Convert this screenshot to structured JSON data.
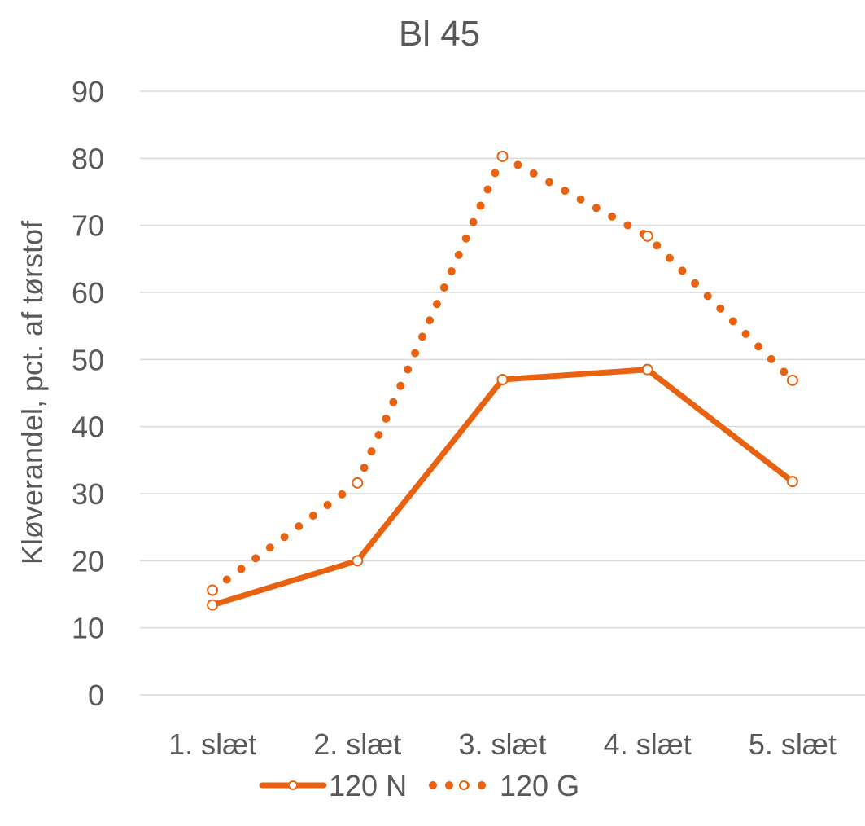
{
  "chart_data": {
    "type": "line",
    "title": "Bl 45",
    "ylabel": "Kløverandel, pct. af tørstof",
    "xlabel": "",
    "categories": [
      "1. slæt",
      "2. slæt",
      "3. slæt",
      "4. slæt",
      "5. slæt"
    ],
    "ylim": [
      0,
      90
    ],
    "yticks": [
      "0",
      "10",
      "20",
      "30",
      "40",
      "50",
      "60",
      "70",
      "80",
      "90"
    ],
    "grid": true,
    "legend": "bottom",
    "series": [
      {
        "name": "120 N",
        "style": "solid",
        "color": "#E8620F",
        "values": [
          13.4,
          20.0,
          47.0,
          48.5,
          31.8
        ]
      },
      {
        "name": "120 G",
        "style": "dotted",
        "color": "#E8620F",
        "values": [
          15.6,
          31.6,
          80.3,
          68.4,
          46.9
        ]
      }
    ]
  }
}
